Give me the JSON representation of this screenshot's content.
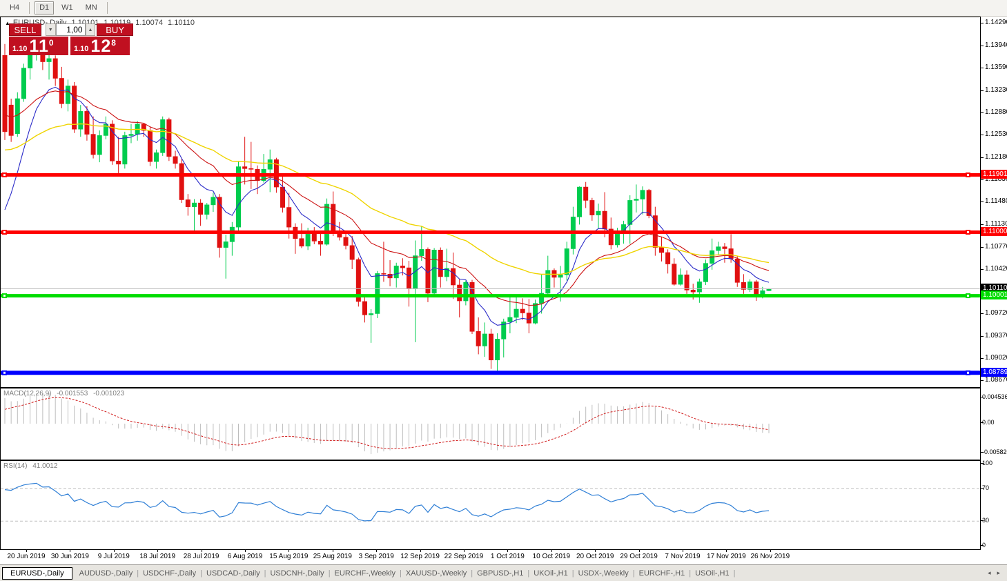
{
  "toolbar": {
    "timeframes": [
      {
        "label": "H4",
        "active": false
      },
      {
        "label": "D1",
        "active": true
      },
      {
        "label": "W1",
        "active": false
      },
      {
        "label": "MN",
        "active": false
      }
    ]
  },
  "chart_header": {
    "symbol_title": "EURUSD-,Daily",
    "open": "1.10101",
    "high": "1.10119",
    "low": "1.10074",
    "close": "1.10110"
  },
  "trade_widget": {
    "sell_label": "SELL",
    "buy_label": "BUY",
    "volume": "1,00",
    "sell_price": {
      "prefix": "1.10",
      "big": "11",
      "pip": "0"
    },
    "buy_price": {
      "prefix": "1.10",
      "big": "12",
      "pip": "8"
    }
  },
  "price_axis": {
    "ticks": [
      "1.14290",
      "1.13940",
      "1.13590",
      "1.13230",
      "1.12880",
      "1.12530",
      "1.12180",
      "1.11830",
      "1.11480",
      "1.11130",
      "1.10770",
      "1.10420",
      "1.09720",
      "1.09370",
      "1.09020",
      "1.08670"
    ],
    "line_labels": [
      {
        "text": "1.11901",
        "bg": "#FF0000",
        "fg": "#FFFFFF",
        "price": 1.11901
      },
      {
        "text": "1.11000",
        "bg": "#FF0000",
        "fg": "#FFFFFF",
        "price": 1.11
      },
      {
        "text": "1.10110",
        "bg": "#000000",
        "fg": "#FFFFFF",
        "price": 1.1011
      },
      {
        "text": "1.10001",
        "bg": "#00DC00",
        "fg": "#FFFFFF",
        "price": 1.10001
      },
      {
        "text": "1.08789",
        "bg": "#0000FF",
        "fg": "#FFFFFF",
        "price": 1.08789
      }
    ]
  },
  "chart_data": {
    "type": "candlestick",
    "symbol": "EURUSD-",
    "timeframe": "Daily",
    "ylim": [
      1.08564,
      1.1438
    ],
    "x_labels": [
      "20 Jun 2019",
      "30 Jun 2019",
      "9 Jul 2019",
      "18 Jul 2019",
      "28 Jul 2019",
      "6 Aug 2019",
      "15 Aug 2019",
      "25 Aug 2019",
      "3 Sep 2019",
      "12 Sep 2019",
      "22 Sep 2019",
      "1 Oct 2019",
      "10 Oct 2019",
      "20 Oct 2019",
      "29 Oct 2019",
      "7 Nov 2019",
      "17 Nov 2019",
      "26 Nov 2019"
    ],
    "up_color": "#00CC4E",
    "down_color": "#E01010",
    "candles": [
      [
        1.1378,
        1.1396,
        1.1245,
        1.1258
      ],
      [
        1.13,
        1.131,
        1.1242,
        1.1252
      ],
      [
        1.1255,
        1.132,
        1.125,
        1.131
      ],
      [
        1.131,
        1.1365,
        1.1305,
        1.1358
      ],
      [
        1.1358,
        1.139,
        1.134,
        1.1382
      ],
      [
        1.1382,
        1.1405,
        1.137,
        1.1396
      ],
      [
        1.1396,
        1.14,
        1.1355,
        1.1368
      ],
      [
        1.1368,
        1.1382,
        1.134,
        1.1373
      ],
      [
        1.1373,
        1.1378,
        1.133,
        1.1342
      ],
      [
        1.1342,
        1.136,
        1.1295,
        1.1302
      ],
      [
        1.1302,
        1.134,
        1.129,
        1.133
      ],
      [
        1.133,
        1.1336,
        1.1256,
        1.1262
      ],
      [
        1.1262,
        1.13,
        1.125,
        1.129
      ],
      [
        1.129,
        1.1298,
        1.1244,
        1.1254
      ],
      [
        1.1254,
        1.1282,
        1.1216,
        1.1222
      ],
      [
        1.1222,
        1.126,
        1.121,
        1.1252
      ],
      [
        1.1252,
        1.1282,
        1.1246,
        1.127
      ],
      [
        1.127,
        1.1276,
        1.1206,
        1.1212
      ],
      [
        1.1212,
        1.125,
        1.1192,
        1.1207
      ],
      [
        1.1207,
        1.1258,
        1.12,
        1.1252
      ],
      [
        1.1252,
        1.127,
        1.124,
        1.1254
      ],
      [
        1.1254,
        1.1275,
        1.1244,
        1.127
      ],
      [
        1.127,
        1.1272,
        1.125,
        1.126
      ],
      [
        1.126,
        1.1266,
        1.1204,
        1.1211
      ],
      [
        1.1211,
        1.123,
        1.12,
        1.1225
      ],
      [
        1.1225,
        1.1282,
        1.122,
        1.1277
      ],
      [
        1.1277,
        1.128,
        1.1212,
        1.1219
      ],
      [
        1.1219,
        1.1228,
        1.12,
        1.1208
      ],
      [
        1.1208,
        1.1215,
        1.1146,
        1.1151
      ],
      [
        1.1151,
        1.116,
        1.1126,
        1.114
      ],
      [
        1.114,
        1.1152,
        1.1101,
        1.1146
      ],
      [
        1.1146,
        1.1152,
        1.111,
        1.1128
      ],
      [
        1.1128,
        1.1146,
        1.112,
        1.1143
      ],
      [
        1.1143,
        1.1162,
        1.1132,
        1.1155
      ],
      [
        1.1155,
        1.116,
        1.106,
        1.1076
      ],
      [
        1.1076,
        1.1096,
        1.1027,
        1.1085
      ],
      [
        1.1085,
        1.1116,
        1.1063,
        1.1108
      ],
      [
        1.1108,
        1.1212,
        1.1102,
        1.1203
      ],
      [
        1.1203,
        1.125,
        1.1175,
        1.12
      ],
      [
        1.12,
        1.1242,
        1.1168,
        1.1199
      ],
      [
        1.1199,
        1.1205,
        1.116,
        1.1181
      ],
      [
        1.1181,
        1.1223,
        1.1178,
        1.1199
      ],
      [
        1.1199,
        1.123,
        1.1163,
        1.1214
      ],
      [
        1.1214,
        1.1217,
        1.1162,
        1.1171
      ],
      [
        1.1171,
        1.1192,
        1.1131,
        1.1139
      ],
      [
        1.1139,
        1.1162,
        1.109,
        1.1108
      ],
      [
        1.1108,
        1.1114,
        1.1066,
        1.109
      ],
      [
        1.109,
        1.1114,
        1.1075,
        1.1078
      ],
      [
        1.1078,
        1.1107,
        1.1072,
        1.1099
      ],
      [
        1.1099,
        1.1108,
        1.1081,
        1.1086
      ],
      [
        1.1086,
        1.1098,
        1.1063,
        1.1081
      ],
      [
        1.1081,
        1.1153,
        1.1079,
        1.1144
      ],
      [
        1.1144,
        1.1164,
        1.1094,
        1.1101
      ],
      [
        1.1101,
        1.1116,
        1.1087,
        1.1092
      ],
      [
        1.1092,
        1.1098,
        1.1073,
        1.1079
      ],
      [
        1.1079,
        1.1094,
        1.1042,
        1.1057
      ],
      [
        1.1057,
        1.106,
        1.0983,
        1.0991
      ],
      [
        1.0991,
        1.0998,
        1.0958,
        1.097
      ],
      [
        1.097,
        1.0979,
        1.0926,
        1.0972
      ],
      [
        1.0972,
        1.1039,
        1.0965,
        1.1035
      ],
      [
        1.1035,
        1.1085,
        1.1022,
        1.1034
      ],
      [
        1.1034,
        1.1056,
        1.1015,
        1.1028
      ],
      [
        1.1028,
        1.1052,
        1.1013,
        1.1047
      ],
      [
        1.1047,
        1.1059,
        1.1032,
        1.1044
      ],
      [
        1.1044,
        1.1055,
        1.0983,
        1.1011
      ],
      [
        1.1011,
        1.1087,
        1.0927,
        1.1063
      ],
      [
        1.1063,
        1.111,
        1.1055,
        1.1073
      ],
      [
        1.1073,
        1.1076,
        1.099,
        1.1004
      ],
      [
        1.1004,
        1.1075,
        1.1001,
        1.1072
      ],
      [
        1.1072,
        1.1076,
        1.1013,
        1.103
      ],
      [
        1.103,
        1.1074,
        1.1023,
        1.1043
      ],
      [
        1.1043,
        1.1068,
        1.0995,
        1.1017
      ],
      [
        1.1017,
        1.1026,
        1.0966,
        1.0992
      ],
      [
        1.0992,
        1.1024,
        1.0985,
        1.1021
      ],
      [
        1.1021,
        1.1025,
        1.094,
        1.0944
      ],
      [
        1.0944,
        1.0966,
        1.0908,
        1.0921
      ],
      [
        1.0921,
        1.0958,
        1.0904,
        1.094
      ],
      [
        1.094,
        1.0948,
        1.0885,
        1.0899
      ],
      [
        1.0899,
        1.0941,
        1.0879,
        1.0932
      ],
      [
        1.0932,
        1.0964,
        1.0903,
        1.0959
      ],
      [
        1.0959,
        1.0999,
        1.0941,
        1.0966
      ],
      [
        1.0966,
        1.0999,
        1.0957,
        1.0979
      ],
      [
        1.0979,
        1.0996,
        1.0962,
        1.0973
      ],
      [
        1.0973,
        1.0995,
        1.0941,
        1.0957
      ],
      [
        1.0957,
        1.0994,
        1.0955,
        1.0988
      ],
      [
        1.0988,
        1.1034,
        1.0972,
        1.1004
      ],
      [
        1.1004,
        1.1063,
        1.1002,
        1.104
      ],
      [
        1.104,
        1.1043,
        1.1013,
        1.1029
      ],
      [
        1.1029,
        1.1047,
        1.0991,
        1.1033
      ],
      [
        1.1033,
        1.1085,
        1.1024,
        1.1074
      ],
      [
        1.1074,
        1.114,
        1.1065,
        1.1124
      ],
      [
        1.1124,
        1.1172,
        1.1112,
        1.1171
      ],
      [
        1.1171,
        1.1179,
        1.1138,
        1.115
      ],
      [
        1.115,
        1.1154,
        1.1118,
        1.1127
      ],
      [
        1.1127,
        1.1145,
        1.1106,
        1.1133
      ],
      [
        1.1133,
        1.1163,
        1.1092,
        1.1105
      ],
      [
        1.1105,
        1.1123,
        1.1073,
        1.108
      ],
      [
        1.108,
        1.1107,
        1.1076,
        1.1099
      ],
      [
        1.1099,
        1.1118,
        1.1082,
        1.1112
      ],
      [
        1.1112,
        1.1158,
        1.1082,
        1.115
      ],
      [
        1.115,
        1.1175,
        1.1131,
        1.1152
      ],
      [
        1.1152,
        1.1172,
        1.1128,
        1.1166
      ],
      [
        1.1166,
        1.1168,
        1.1122,
        1.1126
      ],
      [
        1.1126,
        1.114,
        1.1063,
        1.1076
      ],
      [
        1.1076,
        1.1093,
        1.1054,
        1.1068
      ],
      [
        1.1068,
        1.1073,
        1.1035,
        1.105
      ],
      [
        1.105,
        1.1059,
        1.1016,
        1.1018
      ],
      [
        1.1018,
        1.1043,
        1.1016,
        1.1033
      ],
      [
        1.1033,
        1.104,
        1.1003,
        1.1009
      ],
      [
        1.1009,
        1.1019,
        1.0994,
        1.1006
      ],
      [
        1.1006,
        1.1027,
        1.0989,
        1.1022
      ],
      [
        1.1022,
        1.1057,
        1.1017,
        1.1051
      ],
      [
        1.1051,
        1.109,
        1.1041,
        1.1071
      ],
      [
        1.1071,
        1.1085,
        1.1064,
        1.1077
      ],
      [
        1.1077,
        1.1083,
        1.1052,
        1.1074
      ],
      [
        1.1074,
        1.1097,
        1.1052,
        1.1058
      ],
      [
        1.1058,
        1.1062,
        1.1014,
        1.1021
      ],
      [
        1.1021,
        1.1034,
        1.1003,
        1.101
      ],
      [
        1.101,
        1.1026,
        1.1006,
        1.1022
      ],
      [
        1.1022,
        1.1025,
        1.0992,
        1.1
      ],
      [
        1.1,
        1.1014,
        1.0996,
        1.1008
      ],
      [
        1.1008,
        1.10119,
        1.10074,
        1.1011
      ]
    ],
    "moving_averages": [
      {
        "period": 8,
        "color": "#2B2BC8"
      },
      {
        "period": 20,
        "color": "#CC1111"
      },
      {
        "period": 45,
        "color": "#EFD400"
      }
    ],
    "horizontal_lines": [
      {
        "price": 1.11901,
        "color": "#FF0000",
        "width": 5,
        "handles": true
      },
      {
        "price": 1.11,
        "color": "#FF0000",
        "width": 5,
        "handles": true
      },
      {
        "price": 1.1011,
        "color": "#C0C0C0",
        "width": 1,
        "handles": false
      },
      {
        "price": 1.10001,
        "color": "#00DC00",
        "width": 5,
        "handles": true
      },
      {
        "price": 1.08789,
        "color": "#0000FF",
        "width": 6,
        "handles": true
      }
    ],
    "macd": {
      "label": "MACD(12,26,9)",
      "value": "-0.001553",
      "signal_value": "-0.001023",
      "fast": 12,
      "slow": 26,
      "smooth": 9,
      "axis": [
        "0.004536",
        "0.00",
        "-0.005820"
      ],
      "hist_color": "#BDBDBD",
      "signal_color": "#D01919"
    },
    "rsi": {
      "label": "RSI(14)",
      "value": "41.0012",
      "period": 14,
      "levels": [
        70,
        30
      ],
      "axis": [
        "100",
        "70",
        "30",
        "0"
      ],
      "color": "#2F7FD6"
    }
  },
  "bottom_tabs": {
    "items": [
      {
        "label": "EURUSD-,Daily",
        "active": true
      },
      {
        "label": "AUDUSD-,Daily",
        "active": false
      },
      {
        "label": "USDCHF-,Daily",
        "active": false
      },
      {
        "label": "USDCAD-,Daily",
        "active": false
      },
      {
        "label": "USDCNH-,Daily",
        "active": false
      },
      {
        "label": "EURCHF-,Weekly",
        "active": false
      },
      {
        "label": "XAUUSD-,Weekly",
        "active": false
      },
      {
        "label": "GBPUSD-,H1",
        "active": false
      },
      {
        "label": "UKOil-,H1",
        "active": false
      },
      {
        "label": "USDX-,Weekly",
        "active": false
      },
      {
        "label": "EURCHF-,H1",
        "active": false
      },
      {
        "label": "USOil-,H1",
        "active": false
      }
    ],
    "scroll_left": "◂",
    "scroll_right": "▸"
  }
}
